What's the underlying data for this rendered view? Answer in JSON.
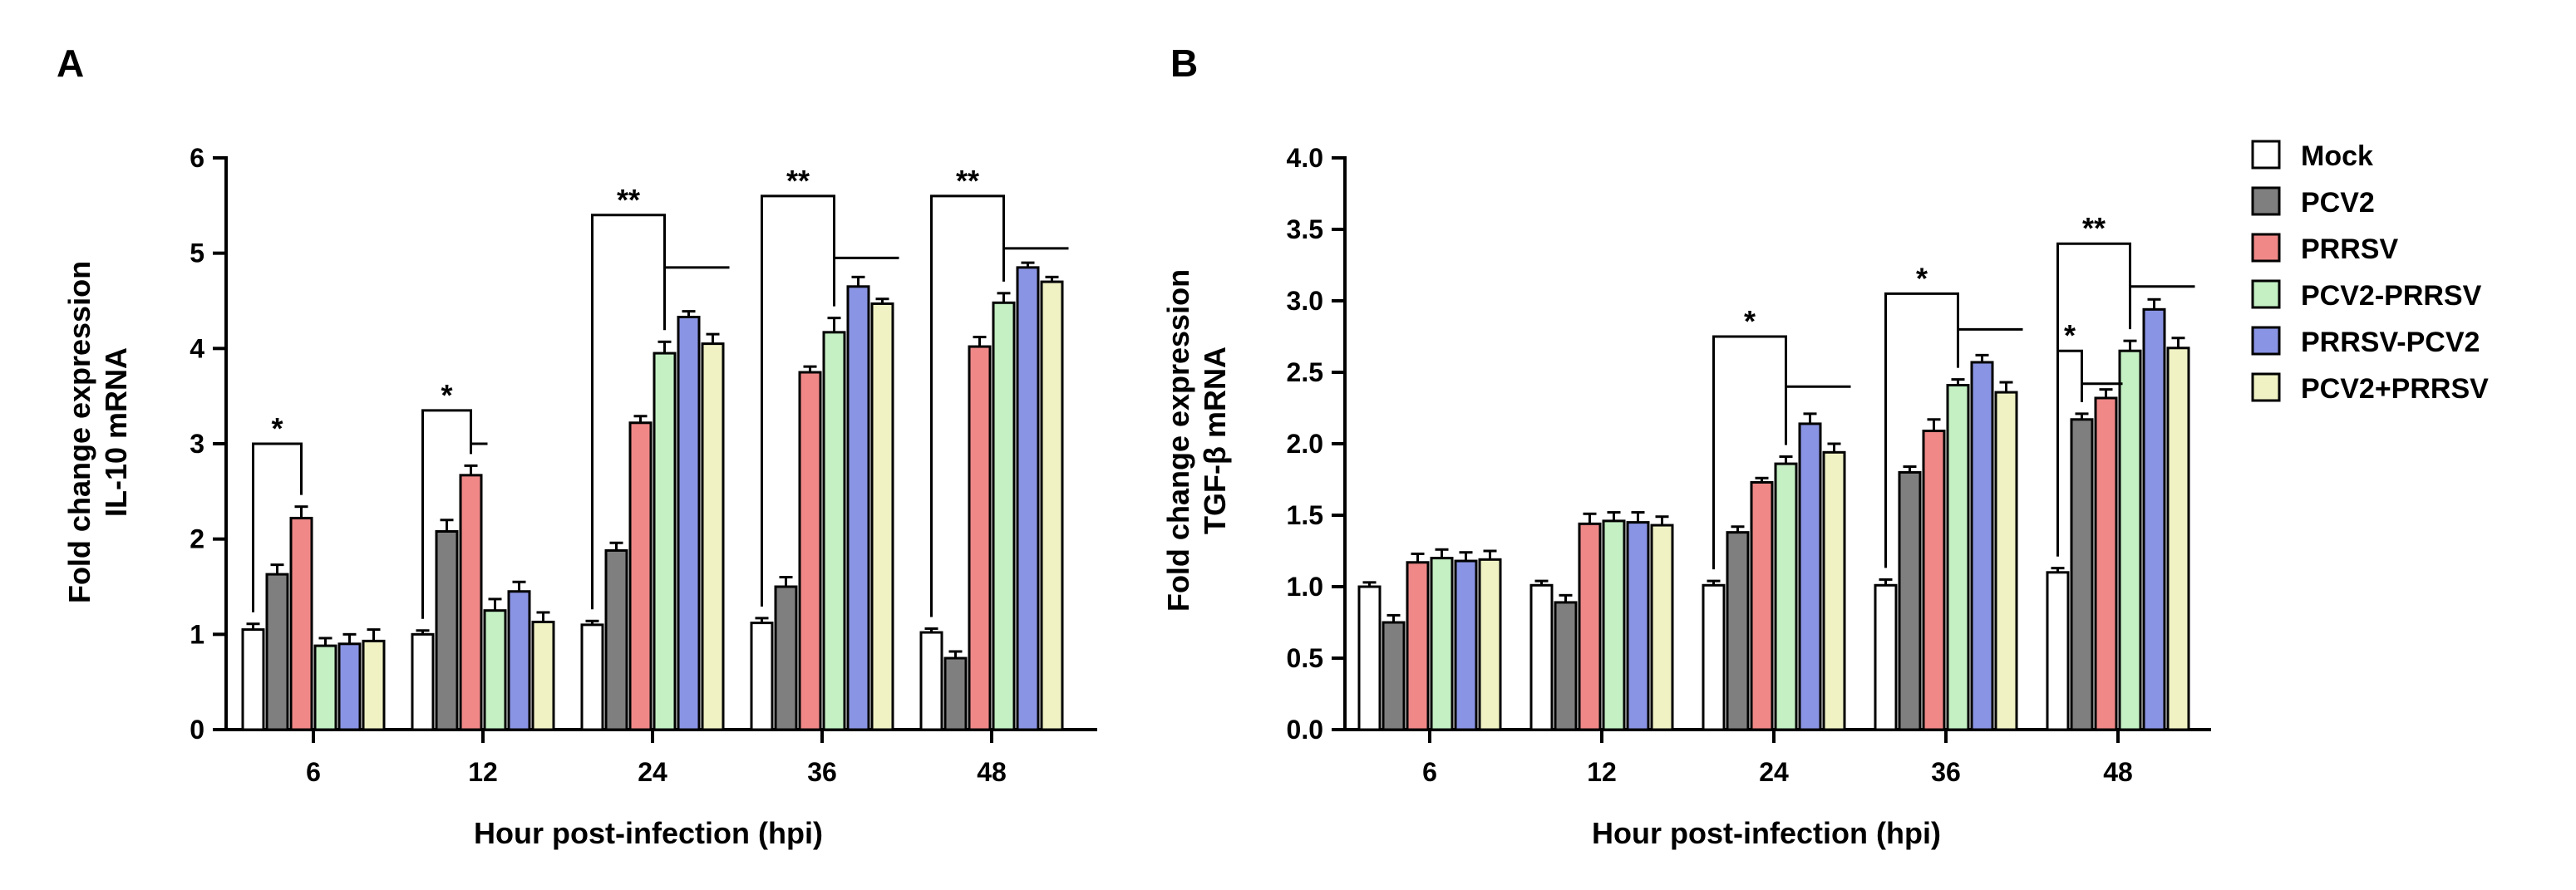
{
  "chart_data": [
    {
      "panel": "A",
      "type": "bar",
      "ylabel_line1": "Fold change expression",
      "ylabel_line2": "IL-10 mRNA",
      "xlabel": "Hour post-infection (hpi)",
      "categories": [
        "6",
        "12",
        "24",
        "36",
        "48"
      ],
      "ylim": [
        0,
        6
      ],
      "yticks": [
        "0",
        "1",
        "2",
        "3",
        "4",
        "5",
        "6"
      ],
      "series": [
        {
          "name": "Mock",
          "values": [
            1.05,
            1.0,
            1.1,
            1.12,
            1.02
          ],
          "errors": [
            0.06,
            0.04,
            0.04,
            0.05,
            0.04
          ]
        },
        {
          "name": "PCV2",
          "values": [
            1.63,
            2.08,
            1.88,
            1.5,
            0.75
          ],
          "errors": [
            0.1,
            0.12,
            0.08,
            0.1,
            0.07
          ]
        },
        {
          "name": "PRRSV",
          "values": [
            2.22,
            2.67,
            3.22,
            3.75,
            4.02
          ],
          "errors": [
            0.12,
            0.1,
            0.07,
            0.06,
            0.1
          ]
        },
        {
          "name": "PCV2-PRRSV",
          "values": [
            0.88,
            1.25,
            3.95,
            4.17,
            4.48
          ],
          "errors": [
            0.08,
            0.12,
            0.12,
            0.15,
            0.1
          ]
        },
        {
          "name": "PRRSV-PCV2",
          "values": [
            0.9,
            1.45,
            4.33,
            4.65,
            4.85
          ],
          "errors": [
            0.1,
            0.1,
            0.06,
            0.1,
            0.05
          ]
        },
        {
          "name": "PCV2+PRRSV",
          "values": [
            0.93,
            1.13,
            4.05,
            4.47,
            4.7
          ],
          "errors": [
            0.12,
            0.1,
            0.1,
            0.05,
            0.05
          ]
        }
      ],
      "significance": [
        {
          "label": "*",
          "category": 0,
          "from": 0,
          "to": 2,
          "line_to": null,
          "y": 3.0,
          "line_y": null
        },
        {
          "label": "*",
          "category": 1,
          "from": 0,
          "to": 2,
          "line_to": 2,
          "y": 3.35,
          "line_y": 3.0
        },
        {
          "label": "**",
          "category": 2,
          "from": 0,
          "to": 3,
          "line_to": 5,
          "y": 5.4,
          "line_y": 4.85
        },
        {
          "label": "**",
          "category": 3,
          "from": 0,
          "to": 3,
          "line_to": 5,
          "y": 5.6,
          "line_y": 4.95
        },
        {
          "label": "**",
          "category": 4,
          "from": 0,
          "to": 3,
          "line_to": 5,
          "y": 5.6,
          "line_y": 5.05
        }
      ]
    },
    {
      "panel": "B",
      "type": "bar",
      "ylabel_line1": "Fold change expression",
      "ylabel_line2": "TGF-β mRNA",
      "xlabel": "Hour post-infection (hpi)",
      "categories": [
        "6",
        "12",
        "24",
        "36",
        "48"
      ],
      "ylim": [
        0,
        4
      ],
      "yticks": [
        "0.0",
        "0.5",
        "1.0",
        "1.5",
        "2.0",
        "2.5",
        "3.0",
        "3.5",
        "4.0"
      ],
      "series": [
        {
          "name": "Mock",
          "values": [
            1.0,
            1.01,
            1.01,
            1.01,
            1.1
          ],
          "errors": [
            0.03,
            0.03,
            0.03,
            0.04,
            0.03
          ]
        },
        {
          "name": "PCV2",
          "values": [
            0.75,
            0.89,
            1.38,
            1.8,
            2.17
          ],
          "errors": [
            0.05,
            0.05,
            0.04,
            0.04,
            0.04
          ]
        },
        {
          "name": "PRRSV",
          "values": [
            1.17,
            1.44,
            1.73,
            2.09,
            2.32
          ],
          "errors": [
            0.06,
            0.07,
            0.03,
            0.08,
            0.06
          ]
        },
        {
          "name": "PCV2-PRRSV",
          "values": [
            1.2,
            1.46,
            1.86,
            2.41,
            2.65
          ],
          "errors": [
            0.06,
            0.06,
            0.05,
            0.04,
            0.07
          ]
        },
        {
          "name": "PRRSV-PCV2",
          "values": [
            1.18,
            1.45,
            2.14,
            2.57,
            2.94
          ],
          "errors": [
            0.06,
            0.07,
            0.07,
            0.05,
            0.07
          ]
        },
        {
          "name": "PCV2+PRRSV",
          "values": [
            1.19,
            1.43,
            1.94,
            2.36,
            2.67
          ],
          "errors": [
            0.06,
            0.06,
            0.06,
            0.07,
            0.07
          ]
        }
      ],
      "significance": [
        {
          "label": "*",
          "category": 2,
          "from": 0,
          "to": 3,
          "line_to": 5,
          "y": 2.75,
          "line_y": 2.4
        },
        {
          "label": "*",
          "category": 3,
          "from": 0,
          "to": 3,
          "line_to": 5,
          "y": 3.05,
          "line_y": 2.8
        },
        {
          "label": "*",
          "category": 4,
          "from": 0,
          "to": 1,
          "line_to": 2,
          "y": 2.65,
          "line_y": 2.42
        },
        {
          "label": "**",
          "category": 4,
          "from": 0,
          "to": 3,
          "line_to": 5,
          "y": 3.4,
          "line_y": 3.1
        }
      ]
    }
  ],
  "legend": [
    {
      "label": "Mock",
      "color": "#ffffff"
    },
    {
      "label": "PCV2",
      "color": "#7f7f7f"
    },
    {
      "label": "PRRSV",
      "color": "#f08888"
    },
    {
      "label": "PCV2-PRRSV",
      "color": "#c4f0c4"
    },
    {
      "label": "PRRSV-PCV2",
      "color": "#8a94e4"
    },
    {
      "label": "PCV2+PRRSV",
      "color": "#f0f2c4"
    }
  ]
}
